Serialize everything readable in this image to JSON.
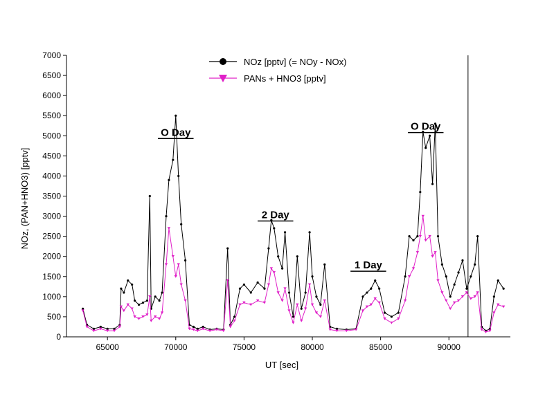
{
  "chart_data": {
    "type": "line",
    "xlabel": "UT [sec]",
    "ylabel": "NOz, (PAN+HNO3)  [pptv]",
    "xlim": [
      62000,
      94500
    ],
    "ylim": [
      0,
      7000
    ],
    "xticks": [
      65000,
      70000,
      75000,
      80000,
      85000,
      90000
    ],
    "yticks": [
      0,
      500,
      1000,
      1500,
      2000,
      2500,
      3000,
      3500,
      4000,
      4500,
      5000,
      5500,
      6000,
      6500,
      7000
    ],
    "legend": [
      "NOz [pptv]  (= NOy - NOx)",
      "PANs + HNO3 [pptv]"
    ],
    "legend_position": "top-center",
    "colors": {
      "noz": "#000000",
      "pans": "#e020c8"
    },
    "annotations": [
      {
        "text": "O Day",
        "x": 70000,
        "y": 5000
      },
      {
        "text": "2 Day",
        "x": 77300,
        "y": 2950
      },
      {
        "text": "1 Day",
        "x": 84100,
        "y": 1700
      },
      {
        "text": "O Day",
        "x": 88300,
        "y": 5150
      }
    ],
    "vertical_line_x": 91400,
    "series": [
      {
        "name": "NOz [pptv]  (= NOy - NOx)",
        "marker": "circle",
        "x": [
          63200,
          63500,
          64000,
          64500,
          65000,
          65500,
          65900,
          66000,
          66200,
          66500,
          66800,
          67000,
          67300,
          67600,
          67900,
          68100,
          68200,
          68500,
          68800,
          69000,
          69300,
          69500,
          69800,
          70000,
          70200,
          70400,
          70700,
          71000,
          71300,
          71600,
          72000,
          72500,
          73000,
          73500,
          73800,
          74000,
          74300,
          74700,
          75000,
          75500,
          76000,
          76500,
          76800,
          77000,
          77200,
          77500,
          77800,
          78000,
          78300,
          78600,
          78900,
          79200,
          79500,
          79800,
          80000,
          80300,
          80600,
          80900,
          81300,
          81800,
          82500,
          83200,
          83700,
          84000,
          84300,
          84600,
          84900,
          85300,
          85800,
          86300,
          86800,
          87100,
          87400,
          87700,
          87900,
          88100,
          88300,
          88600,
          88800,
          89000,
          89200,
          89500,
          89800,
          90100,
          90400,
          90700,
          91000,
          91300,
          91600,
          91900,
          92100,
          92400,
          92700,
          93000,
          93300,
          93600,
          94000
        ],
        "y": [
          700,
          300,
          200,
          250,
          200,
          200,
          300,
          1200,
          1100,
          1400,
          1300,
          900,
          800,
          850,
          900,
          3500,
          700,
          1000,
          900,
          1100,
          3000,
          3900,
          4400,
          5500,
          4000,
          2800,
          1900,
          300,
          250,
          200,
          250,
          180,
          200,
          180,
          2200,
          300,
          500,
          1200,
          1300,
          1100,
          1350,
          1200,
          2200,
          2900,
          2700,
          2000,
          1700,
          2600,
          1100,
          500,
          2000,
          700,
          1100,
          2600,
          1500,
          1000,
          800,
          1800,
          250,
          200,
          180,
          200,
          1000,
          1100,
          1200,
          1400,
          1200,
          600,
          500,
          600,
          1500,
          2500,
          2400,
          2500,
          3600,
          5100,
          4700,
          5000,
          3800,
          5300,
          2500,
          1800,
          1500,
          1000,
          1300,
          1600,
          1900,
          1200,
          1500,
          1800,
          2500,
          250,
          150,
          200,
          1000,
          1400,
          1200
        ]
      },
      {
        "name": "PANs + HNO3 [pptv]",
        "marker": "triangle-down",
        "x": [
          63200,
          63500,
          64000,
          64500,
          65000,
          65500,
          65900,
          66000,
          66200,
          66500,
          66800,
          67000,
          67300,
          67600,
          67900,
          68100,
          68200,
          68500,
          68800,
          69000,
          69300,
          69500,
          69800,
          70000,
          70200,
          70400,
          70700,
          71000,
          71300,
          71600,
          72000,
          72500,
          73000,
          73500,
          73800,
          74000,
          74300,
          74700,
          75000,
          75500,
          76000,
          76500,
          76800,
          77000,
          77200,
          77500,
          77800,
          78000,
          78300,
          78600,
          78900,
          79200,
          79500,
          79800,
          80000,
          80300,
          80600,
          80900,
          81300,
          81800,
          82500,
          83200,
          83700,
          84000,
          84300,
          84600,
          84900,
          85300,
          85800,
          86300,
          86800,
          87100,
          87400,
          87700,
          87900,
          88100,
          88300,
          88600,
          88800,
          89000,
          89200,
          89500,
          89800,
          90100,
          90400,
          90700,
          91000,
          91300,
          91600,
          91900,
          92100,
          92400,
          92700,
          93000,
          93300,
          93600,
          94000
        ],
        "y": [
          650,
          250,
          150,
          200,
          150,
          150,
          250,
          750,
          650,
          800,
          700,
          500,
          450,
          500,
          550,
          1000,
          400,
          500,
          450,
          600,
          1800,
          2700,
          2000,
          1500,
          1800,
          1300,
          900,
          200,
          180,
          150,
          200,
          150,
          180,
          150,
          1400,
          250,
          400,
          800,
          850,
          800,
          900,
          850,
          1300,
          1700,
          1600,
          1100,
          900,
          1200,
          650,
          350,
          800,
          400,
          700,
          1300,
          800,
          600,
          500,
          900,
          180,
          150,
          150,
          180,
          650,
          750,
          800,
          950,
          850,
          450,
          350,
          450,
          900,
          1500,
          1700,
          2100,
          2500,
          3000,
          2400,
          2500,
          2000,
          2100,
          1400,
          1100,
          900,
          700,
          850,
          900,
          1000,
          1100,
          950,
          1000,
          1100,
          180,
          120,
          150,
          600,
          800,
          750
        ]
      }
    ]
  }
}
